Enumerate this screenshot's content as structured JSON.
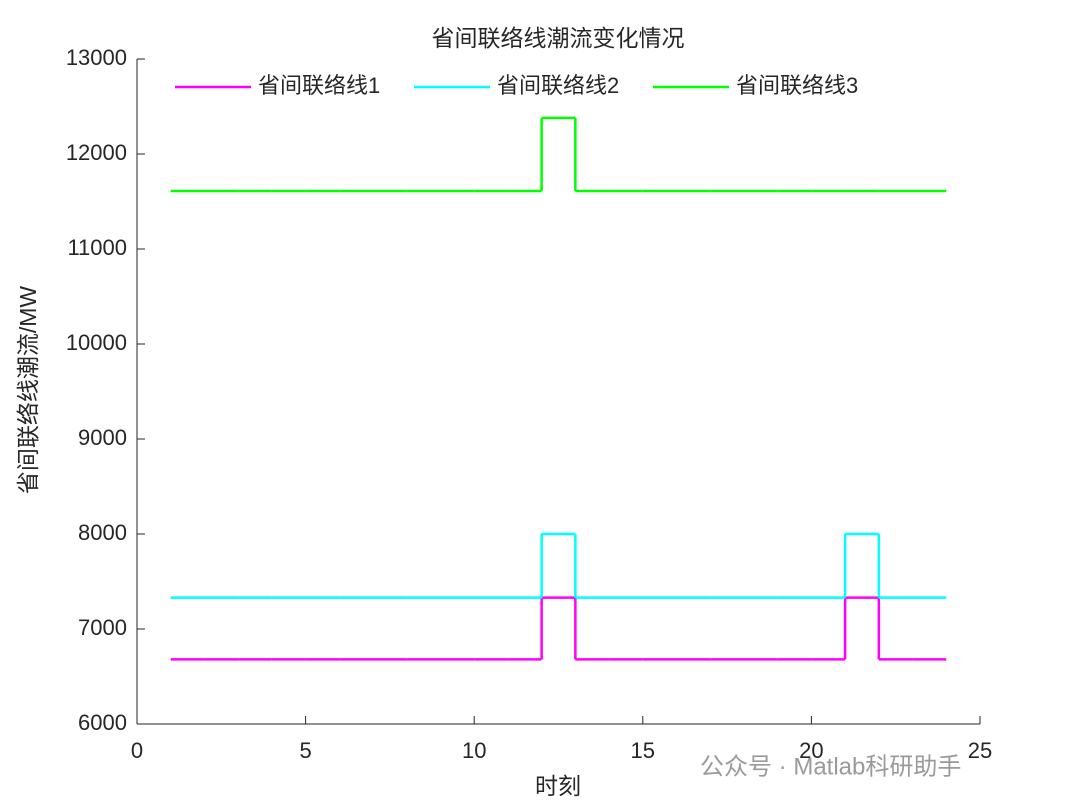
{
  "chart_data": {
    "type": "stairs",
    "title": "省间联络线潮流变化情况",
    "xlabel": "时刻",
    "ylabel": "省间联络线潮流/MW",
    "x": [
      1,
      2,
      3,
      4,
      5,
      6,
      7,
      8,
      9,
      10,
      11,
      12,
      13,
      14,
      15,
      16,
      17,
      18,
      19,
      20,
      21,
      22,
      23,
      24
    ],
    "series": [
      {
        "name": "省间联络线1",
        "color": "#ff00ff",
        "values": [
          6680,
          6680,
          6680,
          6680,
          6680,
          6680,
          6680,
          6680,
          6680,
          6680,
          6680,
          7330,
          6680,
          6680,
          6680,
          6680,
          6680,
          6680,
          6680,
          6680,
          7330,
          6680,
          6680,
          6680
        ]
      },
      {
        "name": "省间联络线2",
        "color": "#00ffff",
        "values": [
          7330,
          7330,
          7330,
          7330,
          7330,
          7330,
          7330,
          7330,
          7330,
          7330,
          7330,
          8000,
          7330,
          7330,
          7330,
          7330,
          7330,
          7330,
          7330,
          7330,
          8000,
          7330,
          7330,
          7330
        ]
      },
      {
        "name": "省间联络线3",
        "color": "#00ff00",
        "values": [
          11610,
          11610,
          11610,
          11610,
          11610,
          11610,
          11610,
          11610,
          11610,
          11610,
          11610,
          12380,
          11610,
          11610,
          11610,
          11610,
          11610,
          11610,
          11610,
          11610,
          11610,
          11610,
          11610,
          11610
        ]
      }
    ],
    "xlim": [
      0,
      25
    ],
    "xticks": [
      0,
      5,
      10,
      15,
      20,
      25
    ],
    "ylim": [
      6000,
      13000
    ],
    "yticks": [
      6000,
      7000,
      8000,
      9000,
      10000,
      11000,
      12000,
      13000
    ],
    "legend": "top",
    "watermark": "公众号 · Matlab科研助手"
  }
}
